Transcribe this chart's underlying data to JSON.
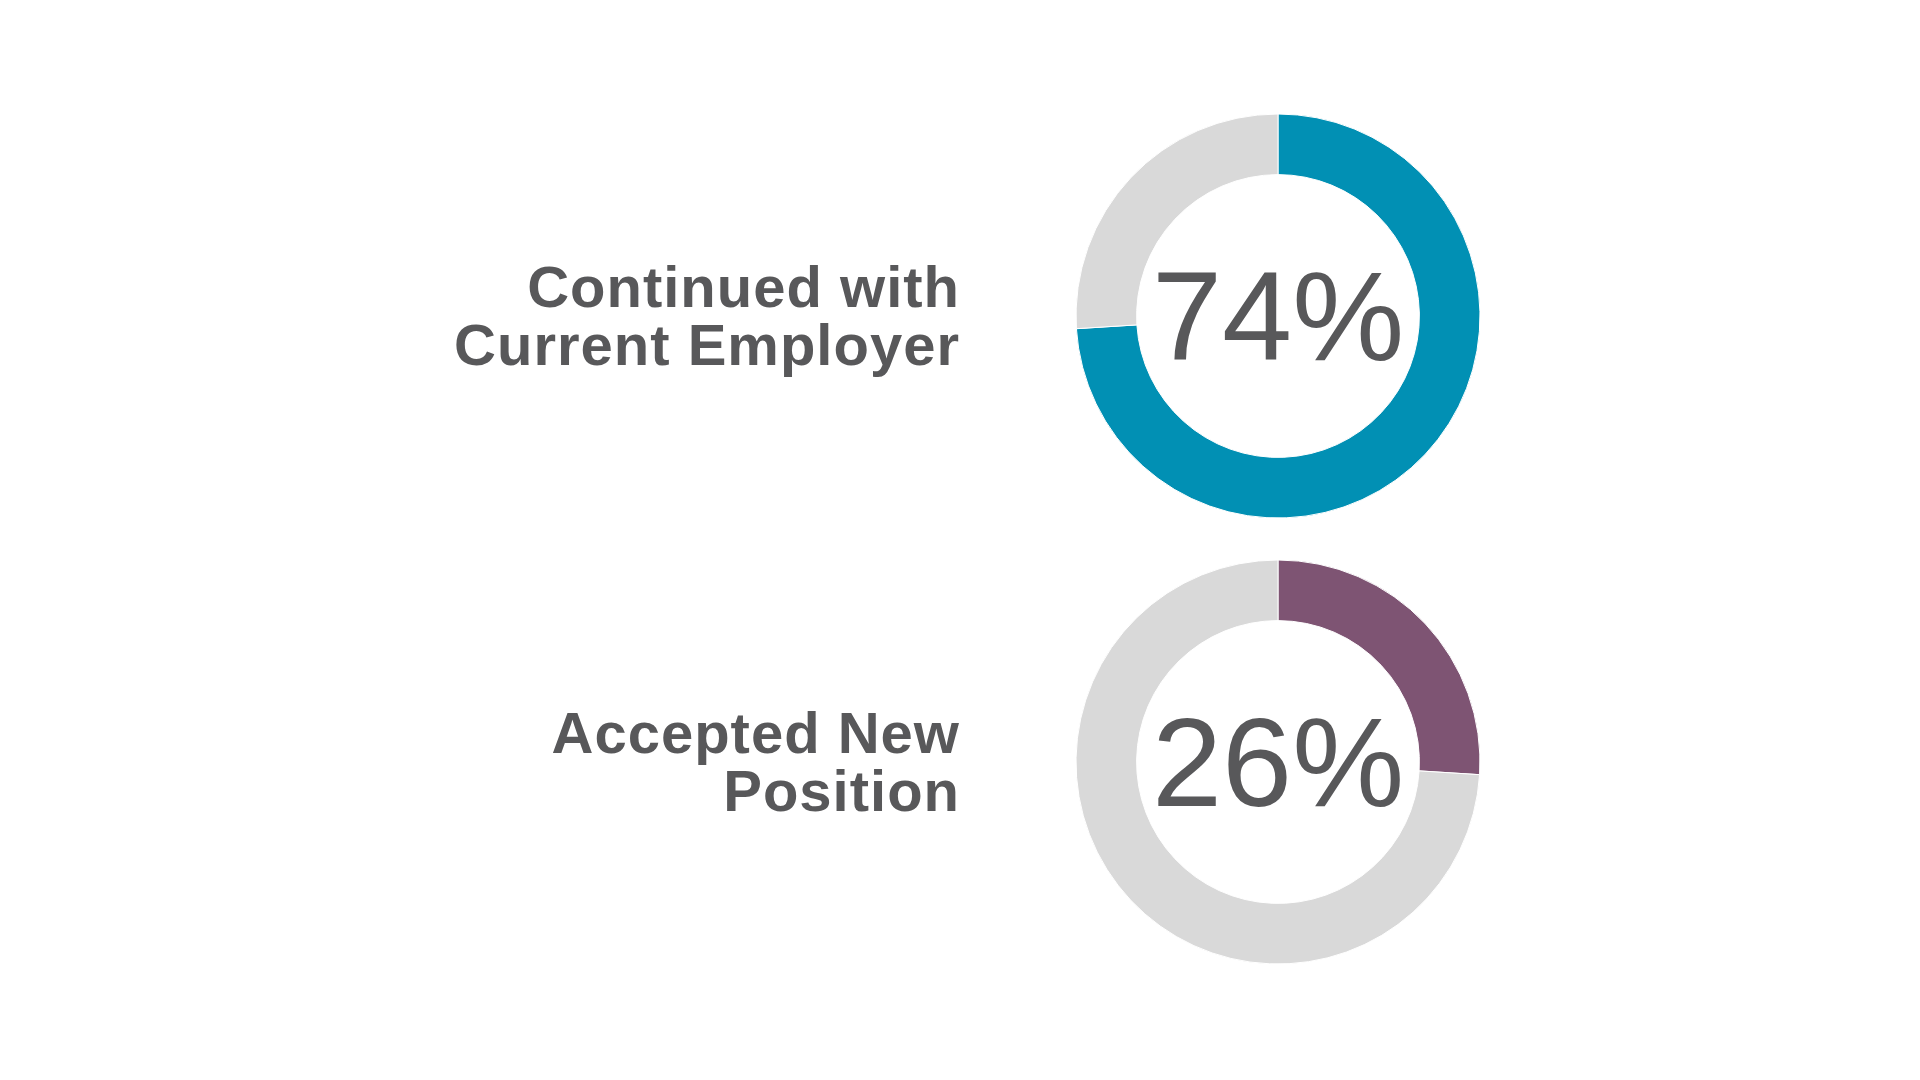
{
  "chart_data": [
    {
      "type": "donut",
      "title": "Continued with Current Employer",
      "categories": [
        null,
        null
      ],
      "values": [
        74,
        26
      ],
      "colors": [
        "#0190b4",
        "#d9d9d9"
      ],
      "annotations": [
        "74%"
      ]
    },
    {
      "type": "donut",
      "title": "Accepted New Position",
      "categories": [
        null,
        null
      ],
      "values": [
        26,
        74
      ],
      "colors": [
        "#7e5473",
        "#d9d9d9"
      ],
      "annotations": [
        "26%"
      ]
    }
  ]
}
